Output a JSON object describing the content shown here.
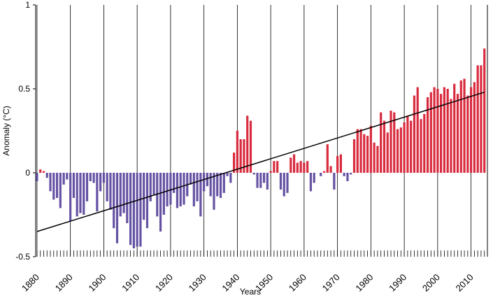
{
  "chart_data": {
    "type": "bar",
    "y_label": "Anomaly  (°C)",
    "x_label": "Years",
    "x": [
      1880,
      1881,
      1882,
      1883,
      1884,
      1885,
      1886,
      1887,
      1888,
      1889,
      1890,
      1891,
      1892,
      1893,
      1894,
      1895,
      1896,
      1897,
      1898,
      1899,
      1900,
      1901,
      1902,
      1903,
      1904,
      1905,
      1906,
      1907,
      1908,
      1909,
      1910,
      1911,
      1912,
      1913,
      1914,
      1915,
      1916,
      1917,
      1918,
      1919,
      1920,
      1921,
      1922,
      1923,
      1924,
      1925,
      1926,
      1927,
      1928,
      1929,
      1930,
      1931,
      1932,
      1933,
      1934,
      1935,
      1936,
      1937,
      1938,
      1939,
      1940,
      1941,
      1942,
      1943,
      1944,
      1945,
      1946,
      1947,
      1948,
      1949,
      1950,
      1951,
      1952,
      1953,
      1954,
      1955,
      1956,
      1957,
      1958,
      1959,
      1960,
      1961,
      1962,
      1963,
      1964,
      1965,
      1966,
      1967,
      1968,
      1969,
      1970,
      1971,
      1972,
      1973,
      1974,
      1975,
      1976,
      1977,
      1978,
      1979,
      1980,
      1981,
      1982,
      1983,
      1984,
      1985,
      1986,
      1987,
      1988,
      1989,
      1990,
      1991,
      1992,
      1993,
      1994,
      1995,
      1996,
      1997,
      1998,
      1999,
      2000,
      2001,
      2002,
      2003,
      2004,
      2005,
      2006,
      2007,
      2008,
      2009,
      2010,
      2011,
      2012,
      2013,
      2014
    ],
    "values": [
      -0.05,
      0.02,
      0.01,
      -0.03,
      -0.11,
      -0.16,
      -0.15,
      -0.21,
      -0.07,
      -0.04,
      -0.29,
      -0.15,
      -0.26,
      -0.24,
      -0.25,
      -0.17,
      -0.05,
      -0.06,
      -0.23,
      -0.11,
      -0.06,
      -0.17,
      -0.22,
      -0.33,
      -0.42,
      -0.26,
      -0.24,
      -0.3,
      -0.43,
      -0.45,
      -0.44,
      -0.44,
      -0.28,
      -0.33,
      -0.17,
      -0.13,
      -0.26,
      -0.35,
      -0.25,
      -0.2,
      -0.19,
      -0.12,
      -0.21,
      -0.2,
      -0.19,
      -0.14,
      -0.07,
      -0.2,
      -0.17,
      -0.26,
      -0.11,
      -0.08,
      -0.14,
      -0.22,
      -0.14,
      -0.15,
      -0.12,
      -0.02,
      -0.06,
      0.12,
      0.25,
      0.2,
      0.2,
      0.34,
      0.31,
      -0.01,
      -0.09,
      -0.09,
      -0.06,
      -0.1,
      0.01,
      0.07,
      0.07,
      -0.1,
      -0.14,
      -0.12,
      0.09,
      0.11,
      0.06,
      0.07,
      0.06,
      0.07,
      -0.11,
      -0.06,
      0.0,
      -0.02,
      0.01,
      0.17,
      0.04,
      -0.1,
      0.1,
      0.11,
      -0.02,
      -0.05,
      -0.01,
      0.2,
      0.26,
      0.26,
      0.23,
      0.22,
      0.28,
      0.18,
      0.16,
      0.36,
      0.31,
      0.24,
      0.37,
      0.36,
      0.26,
      0.27,
      0.3,
      0.34,
      0.31,
      0.46,
      0.51,
      0.32,
      0.35,
      0.45,
      0.48,
      0.51,
      0.5,
      0.47,
      0.51,
      0.5,
      0.44,
      0.53,
      0.47,
      0.55,
      0.56,
      0.46,
      0.51,
      0.54,
      0.64,
      0.64,
      0.74
    ],
    "positive_color": "#d92b3e",
    "negative_color": "#6552a3",
    "trend": {
      "x": [
        1880,
        2014
      ],
      "values": [
        -0.35,
        0.48
      ],
      "color": "#000000"
    },
    "xlim": [
      1879.6,
      2014.9
    ],
    "ylim": [
      -0.5,
      1
    ],
    "xticks": [
      1880,
      1890,
      1900,
      1910,
      1920,
      1930,
      1940,
      1950,
      1960,
      1970,
      1980,
      1990,
      2000,
      2010
    ],
    "yticks": [
      -0.5,
      0,
      0.5,
      1
    ],
    "grid": true
  }
}
